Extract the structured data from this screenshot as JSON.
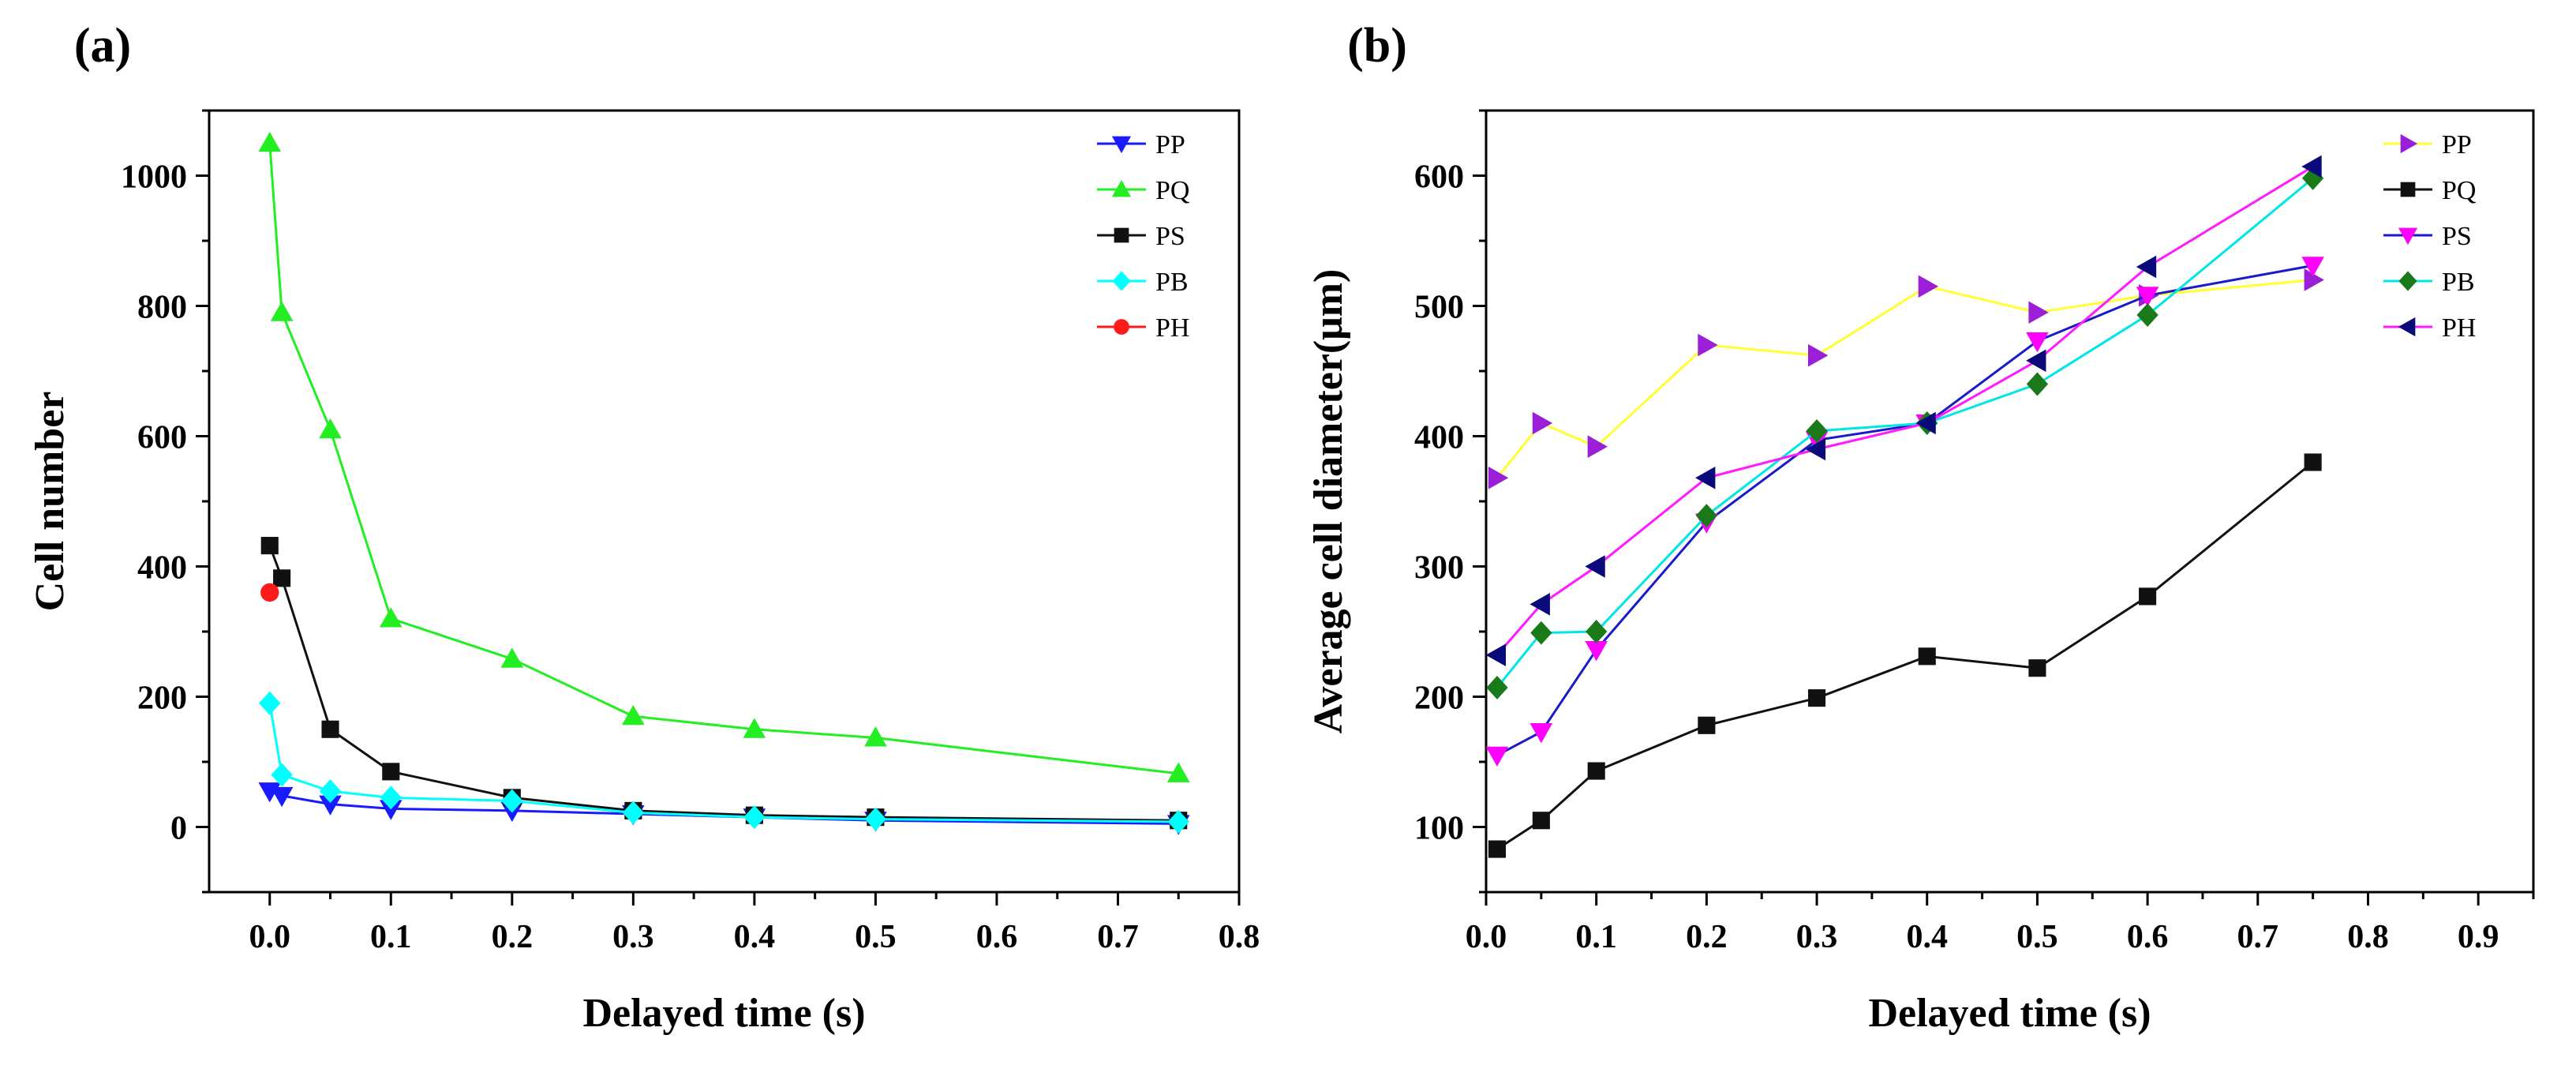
{
  "chart_data": [
    {
      "panel_label": "(a)",
      "type": "line",
      "title": "",
      "xlabel": "Delayed time (s)",
      "ylabel": "Cell number",
      "xlim": [
        -0.05,
        0.8
      ],
      "ylim": [
        -100,
        1100
      ],
      "xticks": [
        0.0,
        0.1,
        0.2,
        0.3,
        0.4,
        0.5,
        0.6,
        0.7,
        0.8
      ],
      "xtick_labels": [
        "0.0",
        "0.1",
        "0.2",
        "0.3",
        "0.4",
        "0.5",
        "0.6",
        "0.7",
        "0.8"
      ],
      "yticks": [
        0,
        200,
        400,
        600,
        800,
        1000
      ],
      "ytick_labels": [
        "0",
        "200",
        "400",
        "600",
        "800",
        "1000"
      ],
      "grid": false,
      "legend_position": "top-right",
      "series": [
        {
          "name": "PP",
          "color": "#1a1aff",
          "marker": "triangle-down",
          "x": [
            0.0,
            0.01,
            0.05,
            0.1,
            0.2,
            0.3,
            0.4,
            0.5,
            0.75
          ],
          "y": [
            55,
            48,
            35,
            28,
            25,
            20,
            15,
            10,
            5
          ]
        },
        {
          "name": "PQ",
          "color": "#22ee22",
          "marker": "triangle-up",
          "x": [
            0.0,
            0.01,
            0.05,
            0.1,
            0.2,
            0.3,
            0.4,
            0.5,
            0.75
          ],
          "y": [
            1050,
            790,
            610,
            320,
            258,
            170,
            150,
            137,
            82
          ]
        },
        {
          "name": "PS",
          "color": "#111111",
          "marker": "square",
          "x": [
            0.0,
            0.01,
            0.05,
            0.1,
            0.2,
            0.3,
            0.4,
            0.5,
            0.75
          ],
          "y": [
            432,
            382,
            150,
            85,
            45,
            25,
            18,
            15,
            10
          ]
        },
        {
          "name": "PB",
          "color": "#00ffff",
          "marker": "diamond",
          "x": [
            0.0,
            0.01,
            0.05,
            0.1,
            0.2,
            0.3,
            0.4,
            0.5,
            0.75
          ],
          "y": [
            190,
            80,
            55,
            45,
            40,
            22,
            15,
            12,
            8
          ]
        },
        {
          "name": "PH",
          "color": "#ff1a1a",
          "marker": "circle",
          "x": [
            0.0
          ],
          "y": [
            360
          ]
        }
      ]
    },
    {
      "panel_label": "(b)",
      "type": "line",
      "title": "",
      "xlabel": "Delayed time (s)",
      "ylabel": "Average cell diameter(μm)",
      "xlim": [
        0.0,
        0.95
      ],
      "ylim": [
        50,
        650
      ],
      "xticks": [
        0.0,
        0.1,
        0.2,
        0.3,
        0.4,
        0.5,
        0.6,
        0.7,
        0.8,
        0.9
      ],
      "xtick_labels": [
        "0.0",
        "0.1",
        "0.2",
        "0.3",
        "0.4",
        "0.5",
        "0.6",
        "0.7",
        "0.8",
        "0.9"
      ],
      "yticks": [
        100,
        200,
        300,
        400,
        500,
        600
      ],
      "ytick_labels": [
        "100",
        "200",
        "300",
        "400",
        "500",
        "600"
      ],
      "grid": false,
      "legend_position": "top-right",
      "series": [
        {
          "name": "PP",
          "color": "#ffff33",
          "marker_color": "#9b1fd6",
          "marker": "triangle-right",
          "x": [
            0.01,
            0.05,
            0.1,
            0.2,
            0.3,
            0.4,
            0.5,
            0.6,
            0.75
          ],
          "y": [
            368,
            410,
            392,
            470,
            462,
            515,
            495,
            508,
            520
          ]
        },
        {
          "name": "PQ",
          "color": "#111111",
          "marker": "square",
          "x": [
            0.01,
            0.05,
            0.1,
            0.2,
            0.3,
            0.4,
            0.5,
            0.6,
            0.75
          ],
          "y": [
            83,
            105,
            143,
            178,
            199,
            231,
            222,
            277,
            380
          ]
        },
        {
          "name": "PS",
          "color": "#1a1acc",
          "marker_color": "#ff00ff",
          "marker": "triangle-down",
          "x": [
            0.01,
            0.05,
            0.1,
            0.2,
            0.3,
            0.4,
            0.5,
            0.6,
            0.75
          ],
          "y": [
            155,
            173,
            236,
            334,
            397,
            410,
            473,
            508,
            531
          ]
        },
        {
          "name": "PB",
          "color": "#00e5e5",
          "marker_color": "#1a7a1a",
          "marker": "diamond",
          "x": [
            0.01,
            0.05,
            0.1,
            0.2,
            0.3,
            0.4,
            0.5,
            0.6,
            0.75
          ],
          "y": [
            207,
            249,
            250,
            339,
            404,
            410,
            440,
            493,
            598
          ]
        },
        {
          "name": "PH",
          "color": "#ff1aff",
          "marker_color": "#0a0a7a",
          "marker": "triangle-left",
          "x": [
            0.01,
            0.05,
            0.1,
            0.2,
            0.3,
            0.4,
            0.5,
            0.6,
            0.75
          ],
          "y": [
            232,
            271,
            300,
            368,
            390,
            410,
            458,
            530,
            607
          ]
        }
      ]
    }
  ]
}
